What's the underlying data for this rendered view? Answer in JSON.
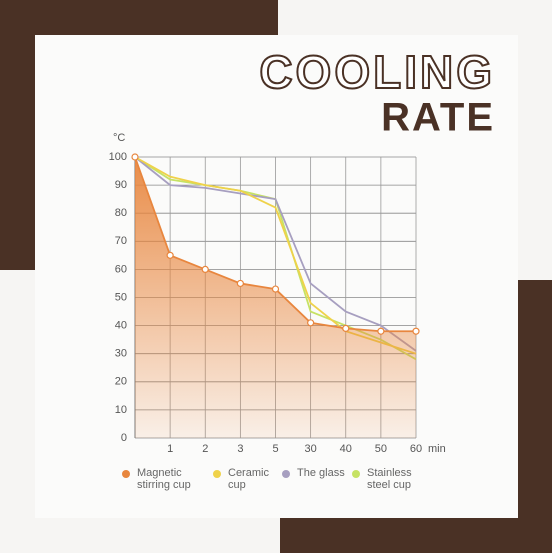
{
  "chart_data": {
    "type": "line",
    "title": [
      "COOLING",
      "RATE"
    ],
    "y_label": "°C",
    "x_unit": "min",
    "categories": [
      null,
      "1",
      "2",
      "3",
      "5",
      "30",
      "40",
      "50",
      "60"
    ],
    "series": [
      {
        "name": "Magnetic stirring cup",
        "color": "#e8863e",
        "fill": true,
        "markers": true,
        "values": [
          100,
          65,
          60,
          55,
          53,
          41,
          39,
          38,
          38
        ]
      },
      {
        "name": "Ceramic cup",
        "color": "#efd24a",
        "values": [
          100,
          93,
          90,
          88,
          82,
          48,
          38,
          34,
          30
        ]
      },
      {
        "name": "The glass",
        "color": "#a79fc0",
        "values": [
          100,
          90,
          89,
          87,
          85,
          55,
          45,
          40,
          31
        ]
      },
      {
        "name": "Stainless steel cup",
        "color": "#c6e264",
        "values": [
          100,
          92,
          90,
          88,
          85,
          45,
          40,
          35,
          28
        ]
      }
    ],
    "ylim": [
      0,
      100
    ],
    "yticks": [
      0,
      10,
      20,
      30,
      40,
      50,
      60,
      70,
      80,
      90,
      100
    ],
    "grid": true
  }
}
